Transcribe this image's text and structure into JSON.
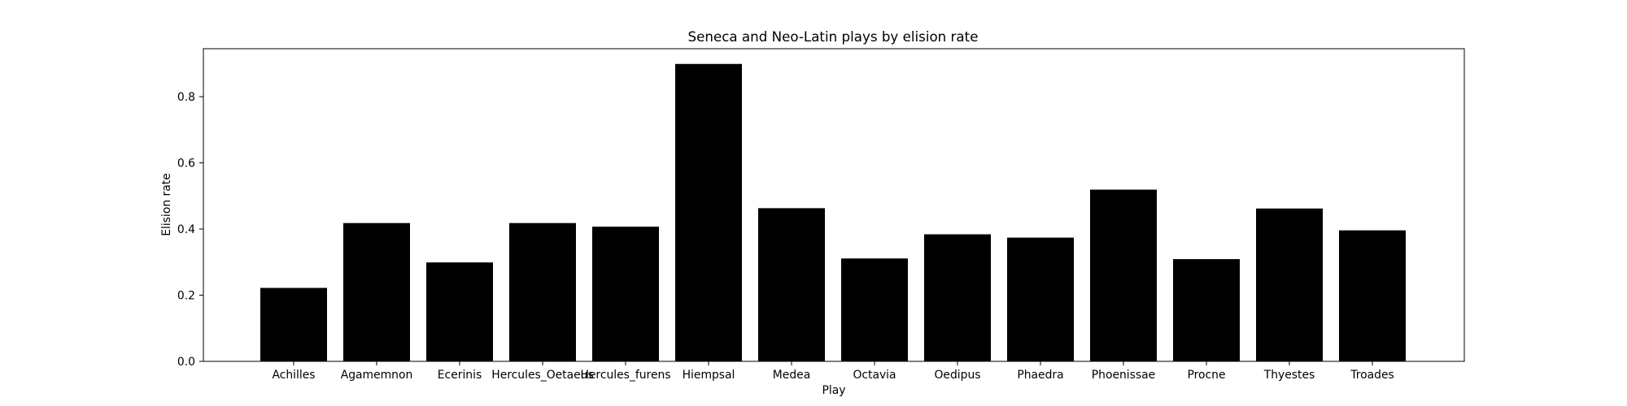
{
  "chart_data": {
    "type": "bar",
    "title": "Seneca and Neo-Latin plays by elision rate",
    "xlabel": "Play",
    "ylabel": "Elision rate",
    "categories": [
      "Achilles",
      "Agamemnon",
      "Ecerinis",
      "Hercules_Oetaeus",
      "Hercules_furens",
      "Hiempsal",
      "Medea",
      "Octavia",
      "Oedipus",
      "Phaedra",
      "Phoenissae",
      "Procne",
      "Thyestes",
      "Troades"
    ],
    "values": [
      0.222,
      0.418,
      0.299,
      0.418,
      0.407,
      0.899,
      0.463,
      0.311,
      0.384,
      0.374,
      0.519,
      0.309,
      0.462,
      0.396
    ],
    "ylim": [
      0,
      0.945
    ],
    "yticks": [
      0.0,
      0.2,
      0.4,
      0.6,
      0.8
    ],
    "ytick_labels": [
      "0.0",
      "0.2",
      "0.4",
      "0.6",
      "0.8"
    ],
    "grid": false,
    "bar_color": "#000000"
  }
}
